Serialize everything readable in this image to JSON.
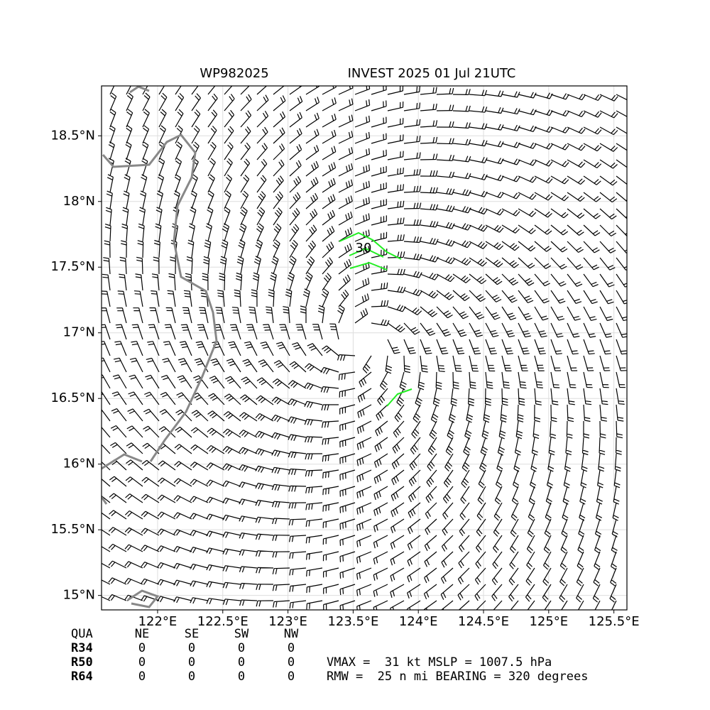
{
  "title_left": "WP982025",
  "title_right": "INVEST 2025 01 Jul 21UTC",
  "map": {
    "xlim": [
      121.57,
      125.6
    ],
    "ylim": [
      14.89,
      18.88
    ],
    "xticks": [
      {
        "value": 122,
        "label": "122°E"
      },
      {
        "value": 122.5,
        "label": "122.5°E"
      },
      {
        "value": 123,
        "label": "123°E"
      },
      {
        "value": 123.5,
        "label": "123.5°E"
      },
      {
        "value": 124,
        "label": "124°E"
      },
      {
        "value": 124.5,
        "label": "124.5°E"
      },
      {
        "value": 125,
        "label": "125°E"
      },
      {
        "value": 125.5,
        "label": "125.5°E"
      }
    ],
    "yticks": [
      {
        "value": 15,
        "label": "15°N"
      },
      {
        "value": 15.5,
        "label": "15.5°N"
      },
      {
        "value": 16,
        "label": "16°N"
      },
      {
        "value": 16.5,
        "label": "16.5°N"
      },
      {
        "value": 17,
        "label": "17°N"
      },
      {
        "value": 17.5,
        "label": "17.5°N"
      },
      {
        "value": 18,
        "label": "18°N"
      },
      {
        "value": 18.5,
        "label": "18.5°N"
      }
    ],
    "contour_label": "30"
  },
  "table": {
    "header": [
      "QUA",
      "NE",
      "SE",
      "SW",
      "NW"
    ],
    "rows": [
      [
        "R34",
        0,
        0,
        0,
        0
      ],
      [
        "R50",
        0,
        0,
        0,
        0
      ],
      [
        "R64",
        0,
        0,
        0,
        0
      ]
    ]
  },
  "info": [
    "VMAX =  31 kt MSLP = 1007.5 hPa",
    "RMW =  25 n mi BEARING = 320 degrees"
  ]
}
